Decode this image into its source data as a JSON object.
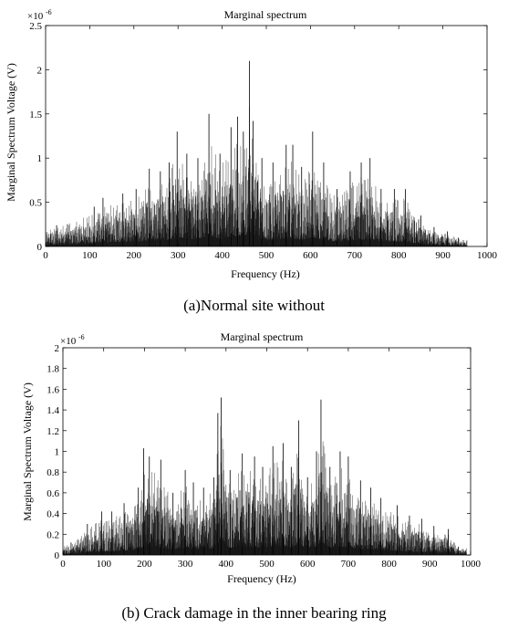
{
  "chart_data": [
    {
      "type": "line",
      "title": "Marginal spectrum",
      "xlabel": "Frequency (Hz)",
      "ylabel": "Marginal Spectrum Voltage (V)",
      "exponent_base": "×10",
      "exponent_power": "-6",
      "xlim": [
        0,
        1000
      ],
      "ylim": [
        0,
        2.5
      ],
      "xticks": [
        "0",
        "100",
        "200",
        "300",
        "400",
        "500",
        "600",
        "700",
        "800",
        "900",
        "1000"
      ],
      "yticks": [
        "0",
        "0.5",
        "1",
        "1.5",
        "2",
        "2.5"
      ],
      "caption": "(a)Normal site without",
      "grid": false,
      "series": [
        {
          "color": "#000000",
          "x": [
            25,
            110,
            130,
            175,
            205,
            235,
            260,
            280,
            298,
            320,
            345,
            370,
            395,
            420,
            435,
            448,
            462,
            470,
            490,
            515,
            545,
            560,
            580,
            605,
            630,
            660,
            690,
            715,
            735,
            760,
            790,
            815,
            850,
            880,
            910,
            935
          ],
          "values": [
            0.24,
            0.45,
            0.55,
            0.6,
            0.65,
            0.88,
            0.85,
            0.95,
            1.3,
            1.05,
            1.0,
            1.5,
            1.05,
            1.35,
            1.47,
            1.3,
            2.1,
            1.42,
            1.0,
            0.95,
            1.15,
            1.15,
            0.9,
            1.3,
            0.95,
            0.65,
            0.85,
            0.95,
            1.0,
            0.65,
            0.65,
            0.65,
            0.35,
            0.22,
            0.17,
            0.1
          ]
        }
      ]
    },
    {
      "type": "line",
      "title": "Marginal spectrum",
      "xlabel": "Frequency (Hz)",
      "ylabel": "Marginal Spectrum Voltage (V)",
      "exponent_base": "×10",
      "exponent_power": "-6",
      "xlim": [
        0,
        1000
      ],
      "ylim": [
        0,
        2
      ],
      "xticks": [
        "0",
        "100",
        "200",
        "300",
        "400",
        "500",
        "600",
        "700",
        "800",
        "900",
        "1000"
      ],
      "yticks": [
        "0",
        "0.2",
        "0.4",
        "0.6",
        "0.8",
        "1",
        "1.2",
        "1.4",
        "1.6",
        "1.8",
        "2"
      ],
      "caption": "(b) Crack damage in the inner bearing ring",
      "grid": false,
      "series": [
        {
          "color": "#000000",
          "x": [
            20,
            60,
            95,
            120,
            150,
            185,
            198,
            212,
            240,
            270,
            300,
            320,
            345,
            370,
            380,
            388,
            410,
            440,
            470,
            490,
            515,
            540,
            560,
            578,
            600,
            622,
            633,
            655,
            680,
            700,
            730,
            755,
            780,
            820,
            850,
            880,
            910,
            945,
            970
          ],
          "values": [
            0.12,
            0.3,
            0.42,
            0.42,
            0.5,
            0.65,
            1.03,
            0.95,
            0.92,
            0.6,
            0.82,
            0.7,
            0.65,
            0.75,
            1.37,
            1.52,
            0.82,
            0.98,
            0.95,
            0.85,
            1.05,
            1.08,
            0.85,
            1.3,
            0.75,
            1.0,
            1.5,
            0.85,
            1.0,
            0.95,
            0.72,
            0.65,
            0.55,
            0.48,
            0.38,
            0.35,
            0.28,
            0.25,
            0.08
          ]
        }
      ]
    }
  ]
}
